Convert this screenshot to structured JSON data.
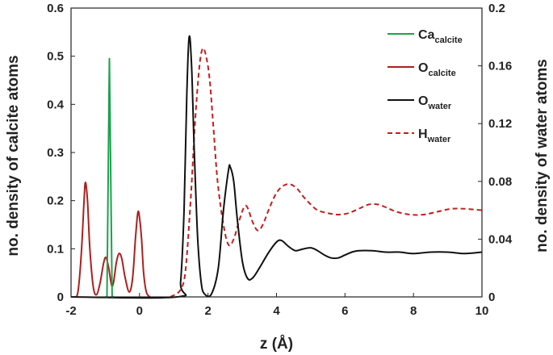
{
  "chart_data": {
    "type": "line",
    "xlabel": "z (Å)",
    "ylabel_left": "no. density of calcite atoms",
    "ylabel_right": "no. density of water atoms",
    "xlim": [
      -2,
      10
    ],
    "ylim_left": [
      0,
      0.6
    ],
    "ylim_right": [
      0,
      0.2
    ],
    "x_ticks": [
      "-2",
      "0",
      "2",
      "4",
      "6",
      "8",
      "10"
    ],
    "y_left_ticks": [
      "0",
      "0.1",
      "0.2",
      "0.3",
      "0.4",
      "0.5",
      "0.6"
    ],
    "y_right_ticks": [
      "0",
      "0.04",
      "0.08",
      "0.12",
      "0.16",
      "0.2"
    ],
    "grid": false,
    "legend_position": "top-right",
    "series": [
      {
        "name_main": "Ca",
        "name_sub": "calcite",
        "axis": "left",
        "color": "#1aa34a",
        "dash": "solid",
        "points": [
          [
            -1.0,
            0
          ],
          [
            -0.95,
            0
          ],
          [
            -0.88,
            0.495
          ],
          [
            -0.8,
            0
          ],
          [
            -0.75,
            0
          ]
        ]
      },
      {
        "name_main": "O",
        "name_sub": "calcite",
        "axis": "left",
        "color": "#b01e1e",
        "dash": "solid",
        "points": [
          [
            -1.9,
            0
          ],
          [
            -1.8,
            0.01
          ],
          [
            -1.7,
            0.09
          ],
          [
            -1.62,
            0.2
          ],
          [
            -1.58,
            0.238
          ],
          [
            -1.52,
            0.2
          ],
          [
            -1.45,
            0.1
          ],
          [
            -1.35,
            0.02
          ],
          [
            -1.25,
            0.005
          ],
          [
            -1.15,
            0.03
          ],
          [
            -1.05,
            0.07
          ],
          [
            -0.98,
            0.082
          ],
          [
            -0.9,
            0.06
          ],
          [
            -0.82,
            0.025
          ],
          [
            -0.76,
            0.03
          ],
          [
            -0.68,
            0.07
          ],
          [
            -0.6,
            0.09
          ],
          [
            -0.52,
            0.08
          ],
          [
            -0.42,
            0.04
          ],
          [
            -0.3,
            0.01
          ],
          [
            -0.2,
            0.04
          ],
          [
            -0.12,
            0.12
          ],
          [
            -0.05,
            0.175
          ],
          [
            0.0,
            0.165
          ],
          [
            0.06,
            0.12
          ],
          [
            0.12,
            0.05
          ],
          [
            0.2,
            0.01
          ],
          [
            0.3,
            0
          ]
        ]
      },
      {
        "name_main": "O",
        "name_sub": "water",
        "axis": "right",
        "color": "#111111",
        "dash": "solid",
        "points": [
          [
            -2,
            0
          ],
          [
            1.1,
            0
          ],
          [
            1.2,
            0.01
          ],
          [
            1.3,
            0.06
          ],
          [
            1.38,
            0.14
          ],
          [
            1.45,
            0.18
          ],
          [
            1.52,
            0.16
          ],
          [
            1.6,
            0.1
          ],
          [
            1.7,
            0.04
          ],
          [
            1.8,
            0.01
          ],
          [
            1.9,
            0.002
          ],
          [
            2.1,
            0.002
          ],
          [
            2.3,
            0.02
          ],
          [
            2.45,
            0.06
          ],
          [
            2.6,
            0.088
          ],
          [
            2.65,
            0.09
          ],
          [
            2.75,
            0.08
          ],
          [
            2.85,
            0.055
          ],
          [
            3.0,
            0.025
          ],
          [
            3.15,
            0.013
          ],
          [
            3.3,
            0.013
          ],
          [
            3.5,
            0.02
          ],
          [
            3.75,
            0.03
          ],
          [
            4.0,
            0.038
          ],
          [
            4.15,
            0.039
          ],
          [
            4.35,
            0.035
          ],
          [
            4.55,
            0.032
          ],
          [
            4.75,
            0.033
          ],
          [
            5.0,
            0.034
          ],
          [
            5.2,
            0.032
          ],
          [
            5.4,
            0.029
          ],
          [
            5.6,
            0.027
          ],
          [
            5.8,
            0.027
          ],
          [
            6.0,
            0.029
          ],
          [
            6.2,
            0.031
          ],
          [
            6.4,
            0.032
          ],
          [
            6.8,
            0.032
          ],
          [
            7.2,
            0.031
          ],
          [
            7.6,
            0.031
          ],
          [
            8.0,
            0.03
          ],
          [
            8.5,
            0.031
          ],
          [
            9.0,
            0.031
          ],
          [
            9.5,
            0.03
          ],
          [
            10.0,
            0.031
          ]
        ]
      },
      {
        "name_main": "H",
        "name_sub": "water",
        "axis": "right",
        "color": "#c41e1e",
        "dash": "dashed",
        "points": [
          [
            0.9,
            0
          ],
          [
            1.2,
            0.005
          ],
          [
            1.35,
            0.02
          ],
          [
            1.5,
            0.07
          ],
          [
            1.62,
            0.12
          ],
          [
            1.75,
            0.16
          ],
          [
            1.85,
            0.172
          ],
          [
            1.95,
            0.166
          ],
          [
            2.05,
            0.15
          ],
          [
            2.15,
            0.12
          ],
          [
            2.28,
            0.08
          ],
          [
            2.45,
            0.05
          ],
          [
            2.6,
            0.036
          ],
          [
            2.75,
            0.04
          ],
          [
            2.9,
            0.052
          ],
          [
            3.05,
            0.062
          ],
          [
            3.15,
            0.062
          ],
          [
            3.3,
            0.052
          ],
          [
            3.45,
            0.046
          ],
          [
            3.6,
            0.05
          ],
          [
            3.8,
            0.062
          ],
          [
            4.0,
            0.072
          ],
          [
            4.2,
            0.077
          ],
          [
            4.4,
            0.078
          ],
          [
            4.6,
            0.075
          ],
          [
            4.8,
            0.069
          ],
          [
            5.0,
            0.064
          ],
          [
            5.2,
            0.06
          ],
          [
            5.5,
            0.058
          ],
          [
            5.8,
            0.057
          ],
          [
            6.1,
            0.058
          ],
          [
            6.4,
            0.061
          ],
          [
            6.7,
            0.064
          ],
          [
            6.95,
            0.064
          ],
          [
            7.2,
            0.062
          ],
          [
            7.5,
            0.059
          ],
          [
            7.9,
            0.057
          ],
          [
            8.3,
            0.057
          ],
          [
            8.7,
            0.059
          ],
          [
            9.1,
            0.061
          ],
          [
            9.5,
            0.061
          ],
          [
            10.0,
            0.06
          ]
        ]
      }
    ]
  }
}
